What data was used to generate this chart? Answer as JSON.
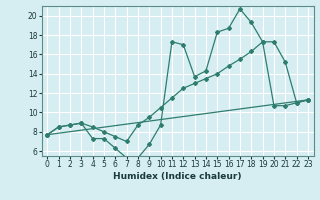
{
  "xlabel": "Humidex (Indice chaleur)",
  "bg_color": "#d6eef2",
  "grid_color": "#ffffff",
  "line_color": "#2e7d6e",
  "xlim": [
    -0.5,
    23.5
  ],
  "ylim": [
    5.5,
    21.0
  ],
  "yticks": [
    6,
    8,
    10,
    12,
    14,
    16,
    18,
    20
  ],
  "xticks": [
    0,
    1,
    2,
    3,
    4,
    5,
    6,
    7,
    8,
    9,
    10,
    11,
    12,
    13,
    14,
    15,
    16,
    17,
    18,
    19,
    20,
    21,
    22,
    23
  ],
  "line1_x": [
    0,
    1,
    2,
    3,
    4,
    5,
    6,
    7,
    8,
    9,
    10,
    11,
    12,
    13,
    14,
    15,
    16,
    17,
    18,
    19,
    20,
    21,
    22,
    23
  ],
  "line1_y": [
    7.7,
    8.5,
    8.7,
    8.9,
    7.3,
    7.3,
    6.3,
    5.3,
    5.3,
    6.7,
    8.7,
    17.3,
    17.0,
    13.7,
    14.3,
    18.3,
    18.7,
    20.7,
    19.3,
    17.3,
    10.7,
    10.7,
    11.0,
    11.3
  ],
  "line2_x": [
    0,
    23
  ],
  "line2_y": [
    7.7,
    11.3
  ],
  "line3_x": [
    0,
    1,
    2,
    3,
    4,
    5,
    6,
    7,
    8,
    9,
    10,
    11,
    12,
    13,
    14,
    15,
    16,
    17,
    18,
    19,
    20,
    21,
    22,
    23
  ],
  "line3_y": [
    7.7,
    8.5,
    8.7,
    8.9,
    8.5,
    8.0,
    7.5,
    7.0,
    8.7,
    9.5,
    10.5,
    11.5,
    12.5,
    13.0,
    13.5,
    14.0,
    14.8,
    15.5,
    16.3,
    17.3,
    17.3,
    15.2,
    11.0,
    11.3
  ]
}
